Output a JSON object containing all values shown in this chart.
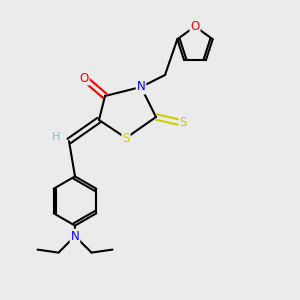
{
  "bg_color": "#ebebeb",
  "atom_colors": {
    "C": "#000000",
    "N": "#0000ff",
    "O": "#ff0000",
    "S": "#cccc00",
    "H": "#7fbfbf"
  },
  "bond_color": "#000000",
  "bond_width": 1.5,
  "figsize": [
    3.0,
    3.0
  ],
  "dpi": 100,
  "xlim": [
    0,
    10
  ],
  "ylim": [
    0,
    10
  ]
}
